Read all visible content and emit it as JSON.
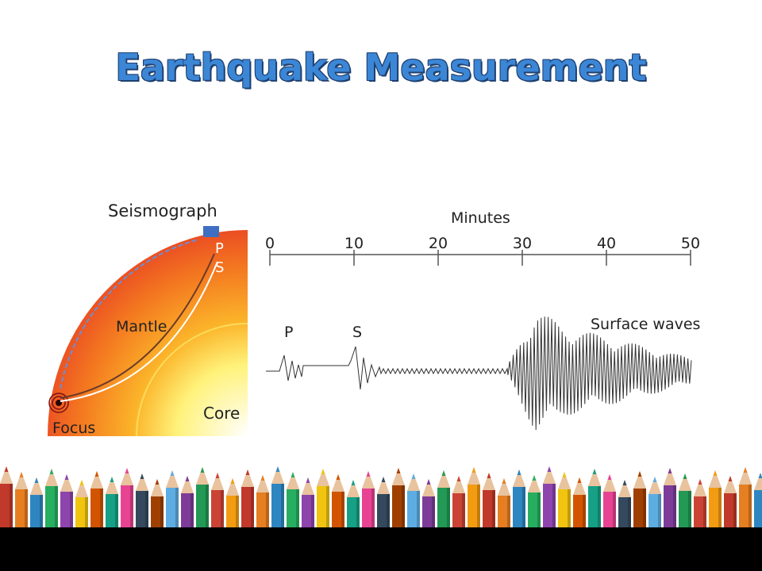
{
  "slide": {
    "title": "Earthquake Measurement"
  },
  "earth_diagram": {
    "seismograph_label": "Seismograph",
    "surface_waves_label": "Surface waves",
    "mantle_label": "Mantle",
    "core_label": "Core",
    "focus_label": "Focus",
    "p_label": "P",
    "s_label": "S",
    "colors": {
      "outer": "#e3262a",
      "mid": "#f47a20",
      "core": "#fff27a",
      "station": "#3e6fc2"
    }
  },
  "seismogram": {
    "axis_title": "Minutes",
    "ticks": [
      "0",
      "10",
      "20",
      "30",
      "40",
      "50"
    ],
    "p_label": "P",
    "s_label": "S",
    "surface_waves_label": "Surface waves"
  }
}
